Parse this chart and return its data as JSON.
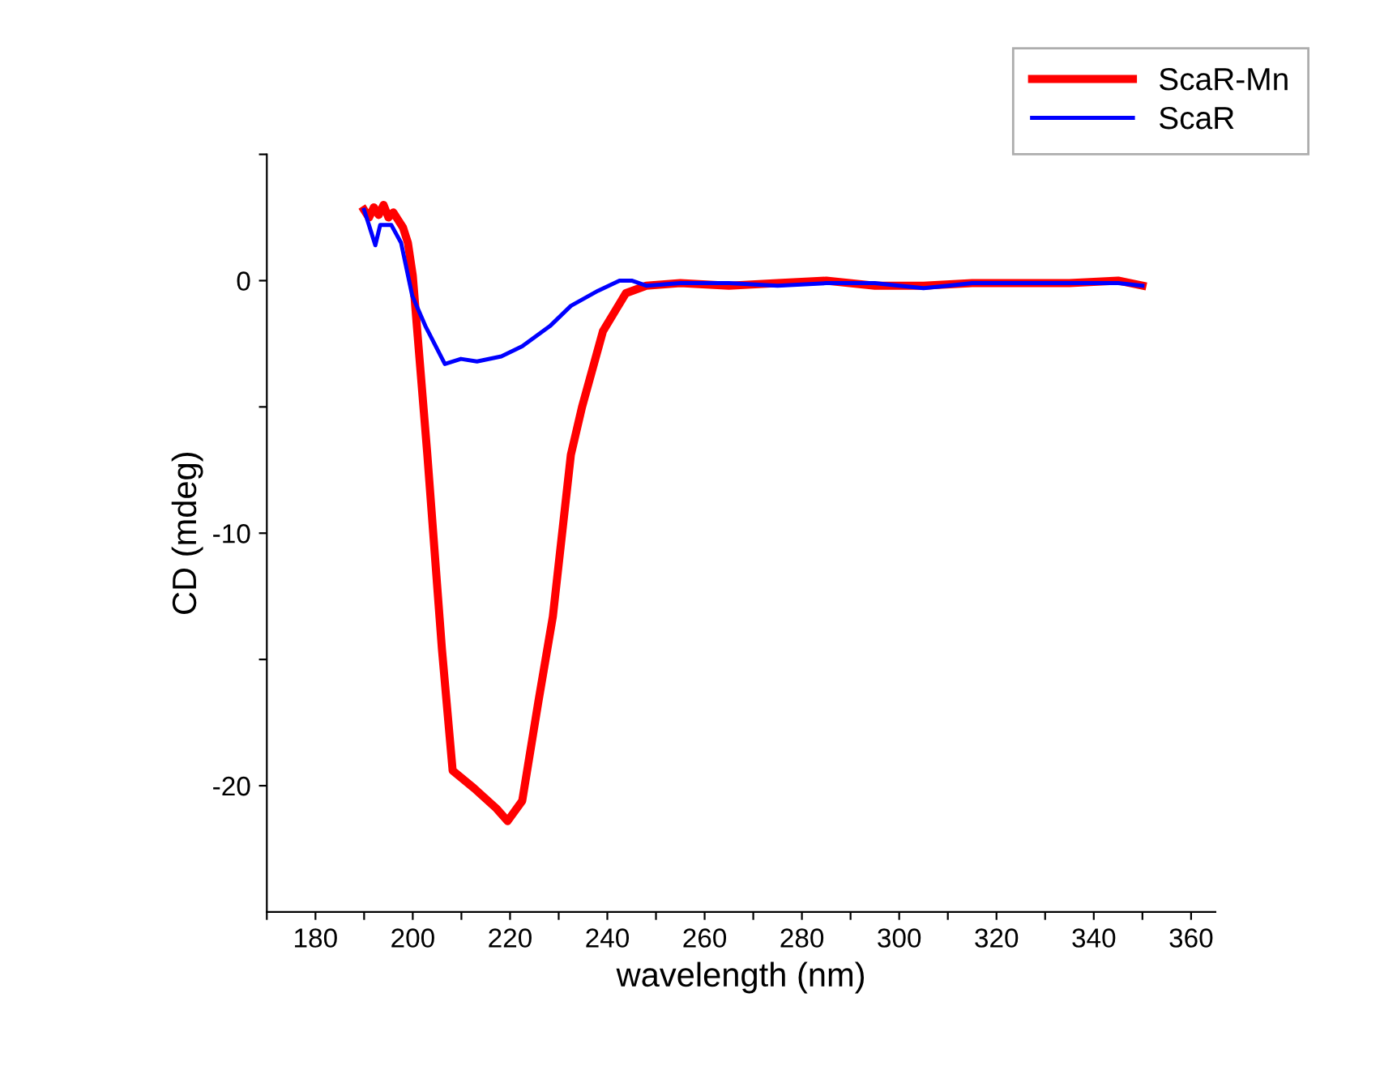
{
  "chart_data": {
    "type": "line",
    "xlabel": "wavelength (nm)",
    "ylabel": "CD (mdeg)",
    "xlim": [
      170,
      365
    ],
    "ylim": [
      -25,
      5
    ],
    "xticks": [
      {
        "value": 170,
        "label": null
      },
      180,
      {
        "value": 190,
        "label": null
      },
      200,
      {
        "value": 210,
        "label": null
      },
      220,
      {
        "value": 230,
        "label": null
      },
      240,
      {
        "value": 250,
        "label": null
      },
      260,
      {
        "value": 270,
        "label": null
      },
      280,
      {
        "value": 290,
        "label": null
      },
      300,
      {
        "value": 310,
        "label": null
      },
      320,
      {
        "value": 330,
        "label": null
      },
      340,
      {
        "value": 350,
        "label": null
      },
      360
    ],
    "yticks": [
      -20,
      {
        "value": -15,
        "label": null
      },
      -10,
      {
        "value": -5,
        "label": null
      },
      0,
      {
        "value": 5,
        "label": null
      }
    ],
    "legend": "top right",
    "grid": false,
    "series": [
      {
        "name": "ScaR-Mn",
        "color": "#ff0000",
        "x": [
          190,
          191,
          192,
          193,
          194,
          195,
          196,
          197,
          198,
          199,
          200,
          203,
          206,
          208.2,
          212.6,
          217.2,
          219.5,
          222.5,
          225.8,
          228.8,
          232.5,
          234.8,
          239.1,
          243.8,
          248,
          255,
          265,
          275,
          285,
          295,
          305,
          315,
          325,
          335,
          345,
          350
        ],
        "values": [
          2.8,
          2.5,
          2.9,
          2.6,
          3.0,
          2.5,
          2.7,
          2.4,
          2.1,
          1.5,
          0.2,
          -6.9,
          -14.6,
          -19.4,
          -20.1,
          -20.9,
          -21.4,
          -20.6,
          -16.7,
          -13.3,
          -6.9,
          -5.0,
          -2.0,
          -0.5,
          -0.2,
          -0.1,
          -0.2,
          -0.1,
          0.0,
          -0.2,
          -0.2,
          -0.1,
          -0.1,
          -0.1,
          0.0,
          -0.2
        ]
      },
      {
        "name": "ScaR",
        "color": "#0000ff",
        "x": [
          190,
          191,
          192.3,
          193.3,
          195.6,
          197.6,
          199.9,
          202.6,
          206.6,
          209.9,
          213.2,
          218.2,
          222.5,
          228.2,
          232.5,
          238.1,
          242.5,
          245,
          248,
          255,
          265,
          275,
          285,
          295,
          300,
          305,
          310,
          315,
          325,
          335,
          345,
          350
        ],
        "values": [
          2.8,
          2.2,
          1.4,
          2.2,
          2.2,
          1.5,
          -0.6,
          -1.8,
          -3.3,
          -3.1,
          -3.2,
          -3.0,
          -2.6,
          -1.8,
          -1.0,
          -0.4,
          0.0,
          0.0,
          -0.2,
          -0.1,
          -0.1,
          -0.2,
          -0.1,
          -0.1,
          -0.2,
          -0.3,
          -0.2,
          -0.1,
          -0.1,
          -0.1,
          -0.1,
          -0.2
        ]
      }
    ]
  }
}
